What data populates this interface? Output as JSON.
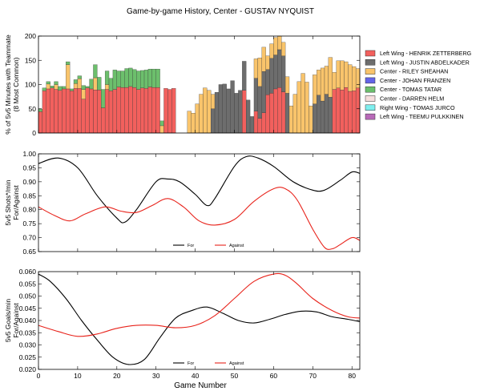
{
  "figure": {
    "title": "Game-by-game History, Center - GUSTAV NYQUIST",
    "xlabel": "Game Number"
  },
  "chart_data": [
    {
      "type": "bar",
      "stacked": true,
      "ylabel_lines": [
        "% of 5v5 Minutes with Teammate",
        "(8 Most Common)"
      ],
      "xlim": [
        0,
        82
      ],
      "ylim": [
        0,
        200
      ],
      "yticks": [
        0,
        50,
        100,
        150,
        200
      ],
      "x_ticks_labeled": false,
      "legend_position": "right",
      "series": [
        {
          "name": "Left Wing - HENRIK ZETTERBERG",
          "color": "#f2605d",
          "values": [
            44,
            87,
            91,
            93,
            90,
            88,
            91,
            91,
            87,
            92,
            92,
            70,
            93,
            91,
            89,
            89,
            52,
            90,
            87,
            90,
            95,
            94,
            94,
            96,
            94,
            90,
            93,
            92,
            95,
            94,
            94,
            0,
            92,
            90,
            92,
            0,
            0,
            0,
            0,
            0,
            0,
            0,
            0,
            0,
            0,
            0,
            0,
            0,
            0,
            0,
            0,
            0,
            88,
            0,
            0,
            45,
            30,
            42,
            79,
            82,
            91,
            94,
            85,
            0,
            0,
            0,
            0,
            0,
            0,
            0,
            0,
            0,
            0,
            0,
            0,
            90,
            93,
            89,
            94,
            86,
            87,
            93
          ]
        },
        {
          "name": "Left Wing - JUSTIN ABDELKADER",
          "color": "#6d6d6d",
          "values": [
            0,
            0,
            0,
            0,
            0,
            0,
            0,
            0,
            0,
            0,
            0,
            0,
            0,
            0,
            0,
            0,
            0,
            0,
            0,
            0,
            0,
            0,
            0,
            0,
            0,
            0,
            0,
            0,
            0,
            0,
            0,
            0,
            0,
            0,
            0,
            0,
            0,
            0,
            0,
            0,
            0,
            0,
            0,
            0,
            50,
            84,
            100,
            101,
            91,
            108,
            82,
            88,
            60,
            68,
            34,
            68,
            66,
            85,
            52,
            72,
            70,
            78,
            74,
            82,
            0,
            0,
            0,
            0,
            0,
            0,
            60,
            78,
            66,
            80,
            74,
            0,
            0,
            0,
            0,
            0,
            0,
            0
          ]
        },
        {
          "name": "Center - RILEY SHEAHAN",
          "color": "#f9c46b",
          "values": [
            0,
            0,
            10,
            0,
            10,
            0,
            0,
            50,
            0,
            10,
            20,
            20,
            0,
            0,
            25,
            0,
            0,
            10,
            0,
            0,
            0,
            0,
            0,
            0,
            0,
            0,
            0,
            0,
            0,
            0,
            0,
            15,
            0,
            0,
            0,
            0,
            0,
            0,
            45,
            41,
            60,
            80,
            93,
            88,
            30,
            0,
            0,
            0,
            0,
            0,
            0,
            0,
            0,
            0,
            0,
            40,
            59,
            50,
            28,
            30,
            36,
            32,
            28,
            34,
            56,
            80,
            106,
            123,
            105,
            56,
            60,
            52,
            68,
            58,
            82,
            35,
            56,
            60,
            53,
            55,
            50,
            40
          ]
        },
        {
          "name": "Center - JOHAN FRANZEN",
          "color": "#6464e8",
          "values": [
            0,
            0,
            0,
            0,
            0,
            0,
            0,
            0,
            0,
            0,
            0,
            0,
            0,
            0,
            0,
            0,
            0,
            0,
            0,
            0,
            0,
            0,
            0,
            0,
            0,
            0,
            0,
            0,
            0,
            0,
            0,
            0,
            0,
            0,
            0,
            0,
            0,
            0,
            0,
            0,
            0,
            0,
            0,
            0,
            0,
            0,
            0,
            0,
            0,
            0,
            0,
            0,
            0,
            0,
            0,
            0,
            0,
            0,
            0,
            0,
            0,
            0,
            0,
            0,
            0,
            0,
            0,
            0,
            0,
            0,
            0,
            0,
            0,
            0,
            0,
            0,
            0,
            0,
            0,
            0,
            0,
            0
          ]
        },
        {
          "name": "Center - TOMAS TATAR",
          "color": "#6cbf6c",
          "values": [
            5,
            6,
            5,
            4,
            6,
            8,
            5,
            6,
            4,
            8,
            6,
            8,
            3,
            20,
            27,
            26,
            38,
            28,
            26,
            40,
            33,
            34,
            39,
            38,
            37,
            38,
            36,
            38,
            37,
            38,
            38,
            10,
            0,
            0,
            0,
            0,
            0,
            0,
            0,
            0,
            0,
            0,
            0,
            0,
            0,
            0,
            0,
            0,
            0,
            0,
            0,
            0,
            0,
            0,
            0,
            0,
            0,
            0,
            0,
            0,
            0,
            0,
            0,
            0,
            0,
            0,
            0,
            0,
            0,
            0,
            0,
            0,
            0,
            0,
            0,
            0,
            0,
            0,
            0,
            0,
            0,
            0
          ]
        },
        {
          "name": "Center - DARREN HELM",
          "color": "#f7dede",
          "values": [
            0,
            0,
            0,
            0,
            0,
            0,
            0,
            0,
            0,
            0,
            0,
            0,
            0,
            0,
            0,
            0,
            0,
            0,
            0,
            0,
            0,
            0,
            0,
            0,
            0,
            0,
            0,
            0,
            0,
            0,
            0,
            0,
            0,
            0,
            0,
            0,
            0,
            0,
            0,
            0,
            0,
            0,
            0,
            0,
            0,
            0,
            0,
            0,
            0,
            0,
            0,
            0,
            0,
            0,
            0,
            0,
            0,
            0,
            0,
            0,
            0,
            0,
            0,
            0,
            0,
            0,
            0,
            0,
            0,
            0,
            0,
            0,
            0,
            0,
            0,
            0,
            0,
            0,
            0,
            0,
            0,
            0
          ]
        },
        {
          "name": "Right Wing - TOMAS JURCO",
          "color": "#7fefef",
          "values": [
            0,
            0,
            0,
            0,
            0,
            0,
            0,
            0,
            0,
            0,
            0,
            0,
            0,
            0,
            0,
            0,
            0,
            0,
            0,
            0,
            0,
            0,
            0,
            0,
            0,
            0,
            0,
            0,
            0,
            0,
            0,
            0,
            0,
            0,
            0,
            0,
            0,
            0,
            0,
            0,
            0,
            0,
            0,
            0,
            0,
            0,
            0,
            0,
            0,
            0,
            0,
            0,
            0,
            0,
            0,
            0,
            0,
            0,
            0,
            0,
            0,
            0,
            0,
            0,
            0,
            0,
            0,
            0,
            0,
            0,
            0,
            0,
            0,
            0,
            0,
            0,
            0,
            0,
            0,
            0,
            0,
            0
          ]
        },
        {
          "name": "Left Wing - TEEMU PULKKINEN",
          "color": "#b86ab8",
          "values": [
            0,
            0,
            0,
            0,
            0,
            0,
            0,
            0,
            0,
            0,
            0,
            0,
            0,
            0,
            0,
            0,
            0,
            0,
            0,
            0,
            0,
            0,
            0,
            0,
            0,
            0,
            0,
            0,
            0,
            0,
            0,
            0,
            0,
            0,
            0,
            0,
            0,
            0,
            0,
            0,
            0,
            0,
            0,
            0,
            0,
            0,
            0,
            0,
            0,
            0,
            0,
            0,
            0,
            0,
            0,
            0,
            0,
            0,
            0,
            0,
            0,
            0,
            0,
            0,
            0,
            0,
            0,
            0,
            0,
            0,
            0,
            0,
            0,
            0,
            0,
            0,
            0,
            0,
            0,
            0,
            0,
            0
          ]
        }
      ]
    },
    {
      "type": "line",
      "ylabel_lines": [
        "5v5 Shots*/min",
        "For/Against"
      ],
      "xlim": [
        0,
        82
      ],
      "ylim": [
        0.65,
        1.0
      ],
      "yticks": [
        0.65,
        0.7,
        0.75,
        0.8,
        0.85,
        0.9,
        0.95,
        1.0
      ],
      "ytick_labels": [
        "0.65",
        "0.70",
        "0.75",
        "0.80",
        "0.85",
        "0.90",
        "0.95",
        "1.00"
      ],
      "legend_position": "bottom-center",
      "series": [
        {
          "name": "For",
          "color": "#000000",
          "x": [
            0,
            5,
            10,
            15,
            20,
            22,
            25,
            30,
            33,
            36,
            40,
            43,
            45,
            50,
            53,
            56,
            60,
            65,
            70,
            73,
            77,
            80,
            82
          ],
          "y": [
            0.965,
            0.985,
            0.95,
            0.85,
            0.77,
            0.755,
            0.8,
            0.9,
            0.91,
            0.9,
            0.855,
            0.815,
            0.84,
            0.955,
            0.99,
            0.985,
            0.955,
            0.9,
            0.87,
            0.87,
            0.905,
            0.935,
            0.93
          ]
        },
        {
          "name": "Against",
          "color": "#e8231b",
          "x": [
            0,
            4,
            8,
            12,
            17,
            21,
            25,
            29,
            33,
            37,
            41,
            45,
            50,
            55,
            60,
            63,
            66,
            70,
            73,
            75,
            77,
            80,
            82
          ],
          "y": [
            0.81,
            0.78,
            0.76,
            0.785,
            0.81,
            0.795,
            0.79,
            0.815,
            0.84,
            0.81,
            0.76,
            0.745,
            0.765,
            0.83,
            0.875,
            0.875,
            0.835,
            0.73,
            0.665,
            0.66,
            0.675,
            0.7,
            0.69
          ]
        }
      ]
    },
    {
      "type": "line",
      "ylabel_lines": [
        "5v5 Goals/min",
        "For/Against"
      ],
      "xlim": [
        0,
        82
      ],
      "ylim": [
        0.02,
        0.06
      ],
      "yticks": [
        0.02,
        0.025,
        0.03,
        0.035,
        0.04,
        0.045,
        0.05,
        0.055,
        0.06
      ],
      "ytick_labels": [
        "0.020",
        "0.025",
        "0.030",
        "0.035",
        "0.040",
        "0.045",
        "0.050",
        "0.055",
        "0.060"
      ],
      "legend_position": "bottom-center",
      "series": [
        {
          "name": "For",
          "color": "#000000",
          "x": [
            0,
            3,
            7,
            11,
            15,
            19,
            23,
            27,
            31,
            35,
            39,
            43,
            47,
            51,
            55,
            59,
            63,
            67,
            71,
            75,
            79,
            82
          ],
          "y": [
            0.059,
            0.056,
            0.049,
            0.04,
            0.032,
            0.025,
            0.022,
            0.024,
            0.033,
            0.041,
            0.044,
            0.0455,
            0.043,
            0.04,
            0.039,
            0.0405,
            0.0425,
            0.0438,
            0.0435,
            0.0415,
            0.0405,
            0.0395
          ]
        },
        {
          "name": "Against",
          "color": "#e8231b",
          "x": [
            0,
            5,
            10,
            15,
            20,
            25,
            30,
            35,
            40,
            45,
            50,
            55,
            60,
            63,
            66,
            70,
            75,
            79,
            82
          ],
          "y": [
            0.038,
            0.0355,
            0.0335,
            0.0345,
            0.0368,
            0.038,
            0.038,
            0.037,
            0.038,
            0.042,
            0.049,
            0.056,
            0.059,
            0.0585,
            0.055,
            0.049,
            0.044,
            0.0415,
            0.041
          ]
        }
      ]
    }
  ]
}
